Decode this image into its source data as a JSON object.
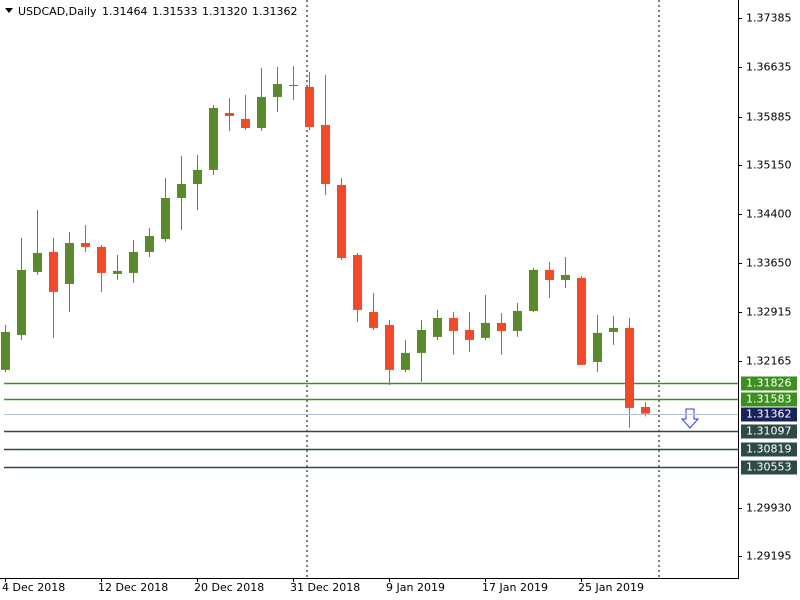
{
  "chart_data": {
    "type": "candlestick",
    "title": "USDCAD,Daily",
    "last_bar_labels": [
      "1.31464",
      "1.31533",
      "1.31320",
      "1.31362"
    ],
    "categories": [
      "4 Dec 2018",
      null,
      null,
      null,
      null,
      null,
      "12 Dec 2018",
      null,
      null,
      null,
      null,
      null,
      "20 Dec 2018",
      null,
      null,
      null,
      null,
      null,
      "31 Dec 2018",
      null,
      null,
      null,
      null,
      null,
      "9 Jan 2019",
      null,
      null,
      null,
      null,
      null,
      "17 Jan 2019",
      null,
      null,
      null,
      null,
      null,
      "25 Jan 2019",
      null,
      null,
      null,
      null
    ],
    "open": [
      1.32028,
      1.3256,
      1.33519,
      1.33824,
      1.33336,
      1.3396,
      1.339,
      1.33489,
      1.33504,
      1.33824,
      1.34021,
      1.34645,
      1.34858,
      1.35072,
      1.35939,
      1.35848,
      1.35711,
      1.36183,
      1.36365,
      1.36335,
      1.35756,
      1.34843,
      1.33778,
      1.3291,
      1.32712,
      1.32028,
      1.32286,
      1.3253,
      1.32819,
      1.32636,
      1.32515,
      1.32743,
      1.32621,
      1.32925,
      1.3355,
      1.33397,
      1.33428,
      1.32149,
      1.32606,
      1.32667,
      1.31464
    ],
    "high": [
      1.32713,
      1.34037,
      1.34463,
      1.34037,
      1.34128,
      1.34234,
      1.3393,
      1.33778,
      1.34006,
      1.34189,
      1.3495,
      1.35285,
      1.353,
      1.36061,
      1.36167,
      1.36213,
      1.36624,
      1.36639,
      1.36654,
      1.36563,
      1.36517,
      1.3495,
      1.33808,
      1.33199,
      1.32789,
      1.32484,
      1.32789,
      1.32941,
      1.3291,
      1.3291,
      1.33169,
      1.32895,
      1.33047,
      1.3358,
      1.33671,
      1.33747,
      1.33458,
      1.32865,
      1.32849,
      1.32819,
      1.31533
    ],
    "low": [
      1.31996,
      1.32484,
      1.33473,
      1.32515,
      1.3291,
      1.33824,
      1.33215,
      1.33397,
      1.33352,
      1.33747,
      1.33976,
      1.34158,
      1.34463,
      1.34995,
      1.35665,
      1.3568,
      1.35665,
      1.35954,
      1.36137,
      1.3568,
      1.34691,
      1.33702,
      1.32758,
      1.32636,
      1.31799,
      1.31996,
      1.31845,
      1.32484,
      1.32256,
      1.32302,
      1.32484,
      1.32256,
      1.3253,
      1.3291,
      1.33123,
      1.33276,
      1.32104,
      1.31996,
      1.32408,
      1.31145,
      1.3132
    ],
    "close": [
      1.32606,
      1.3355,
      1.33808,
      1.33215,
      1.3396,
      1.339,
      1.33504,
      1.33534,
      1.33824,
      1.34067,
      1.34645,
      1.34858,
      1.35072,
      1.36015,
      1.35893,
      1.35711,
      1.36183,
      1.3638,
      1.3635,
      1.35726,
      1.34858,
      1.33732,
      1.32941,
      1.32667,
      1.32028,
      1.32286,
      1.32636,
      1.32819,
      1.32621,
      1.32484,
      1.32743,
      1.32621,
      1.32925,
      1.3355,
      1.33397,
      1.33473,
      1.32104,
      1.32591,
      1.32667,
      1.31449,
      1.31362
    ],
    "up_color": "#5a8a2c",
    "down_color": "#f2492a",
    "ylim": [
      1.2886,
      1.37659
    ],
    "yticks": [
      1.37385,
      1.36635,
      1.35885,
      {
        "value": 1.3515,
        "label": "1.35150"
      },
      {
        "value": 1.344,
        "label": "1.34400"
      },
      {
        "value": 1.3365,
        "label": "1.33650"
      },
      1.32915,
      1.32165,
      {
        "value": 1.2993,
        "label": "1.29930"
      },
      1.29195
    ],
    "levels": [
      {
        "value": 1.31826,
        "color": "#3d8f1f"
      },
      {
        "value": 1.31583,
        "color": "#3d8f1f"
      },
      {
        "value": 1.31097,
        "color": "#2d4a47"
      },
      {
        "value": 1.30819,
        "color": "#2d4a47"
      },
      {
        "value": 1.30553,
        "color": "#2d4a47"
      }
    ]
  }
}
